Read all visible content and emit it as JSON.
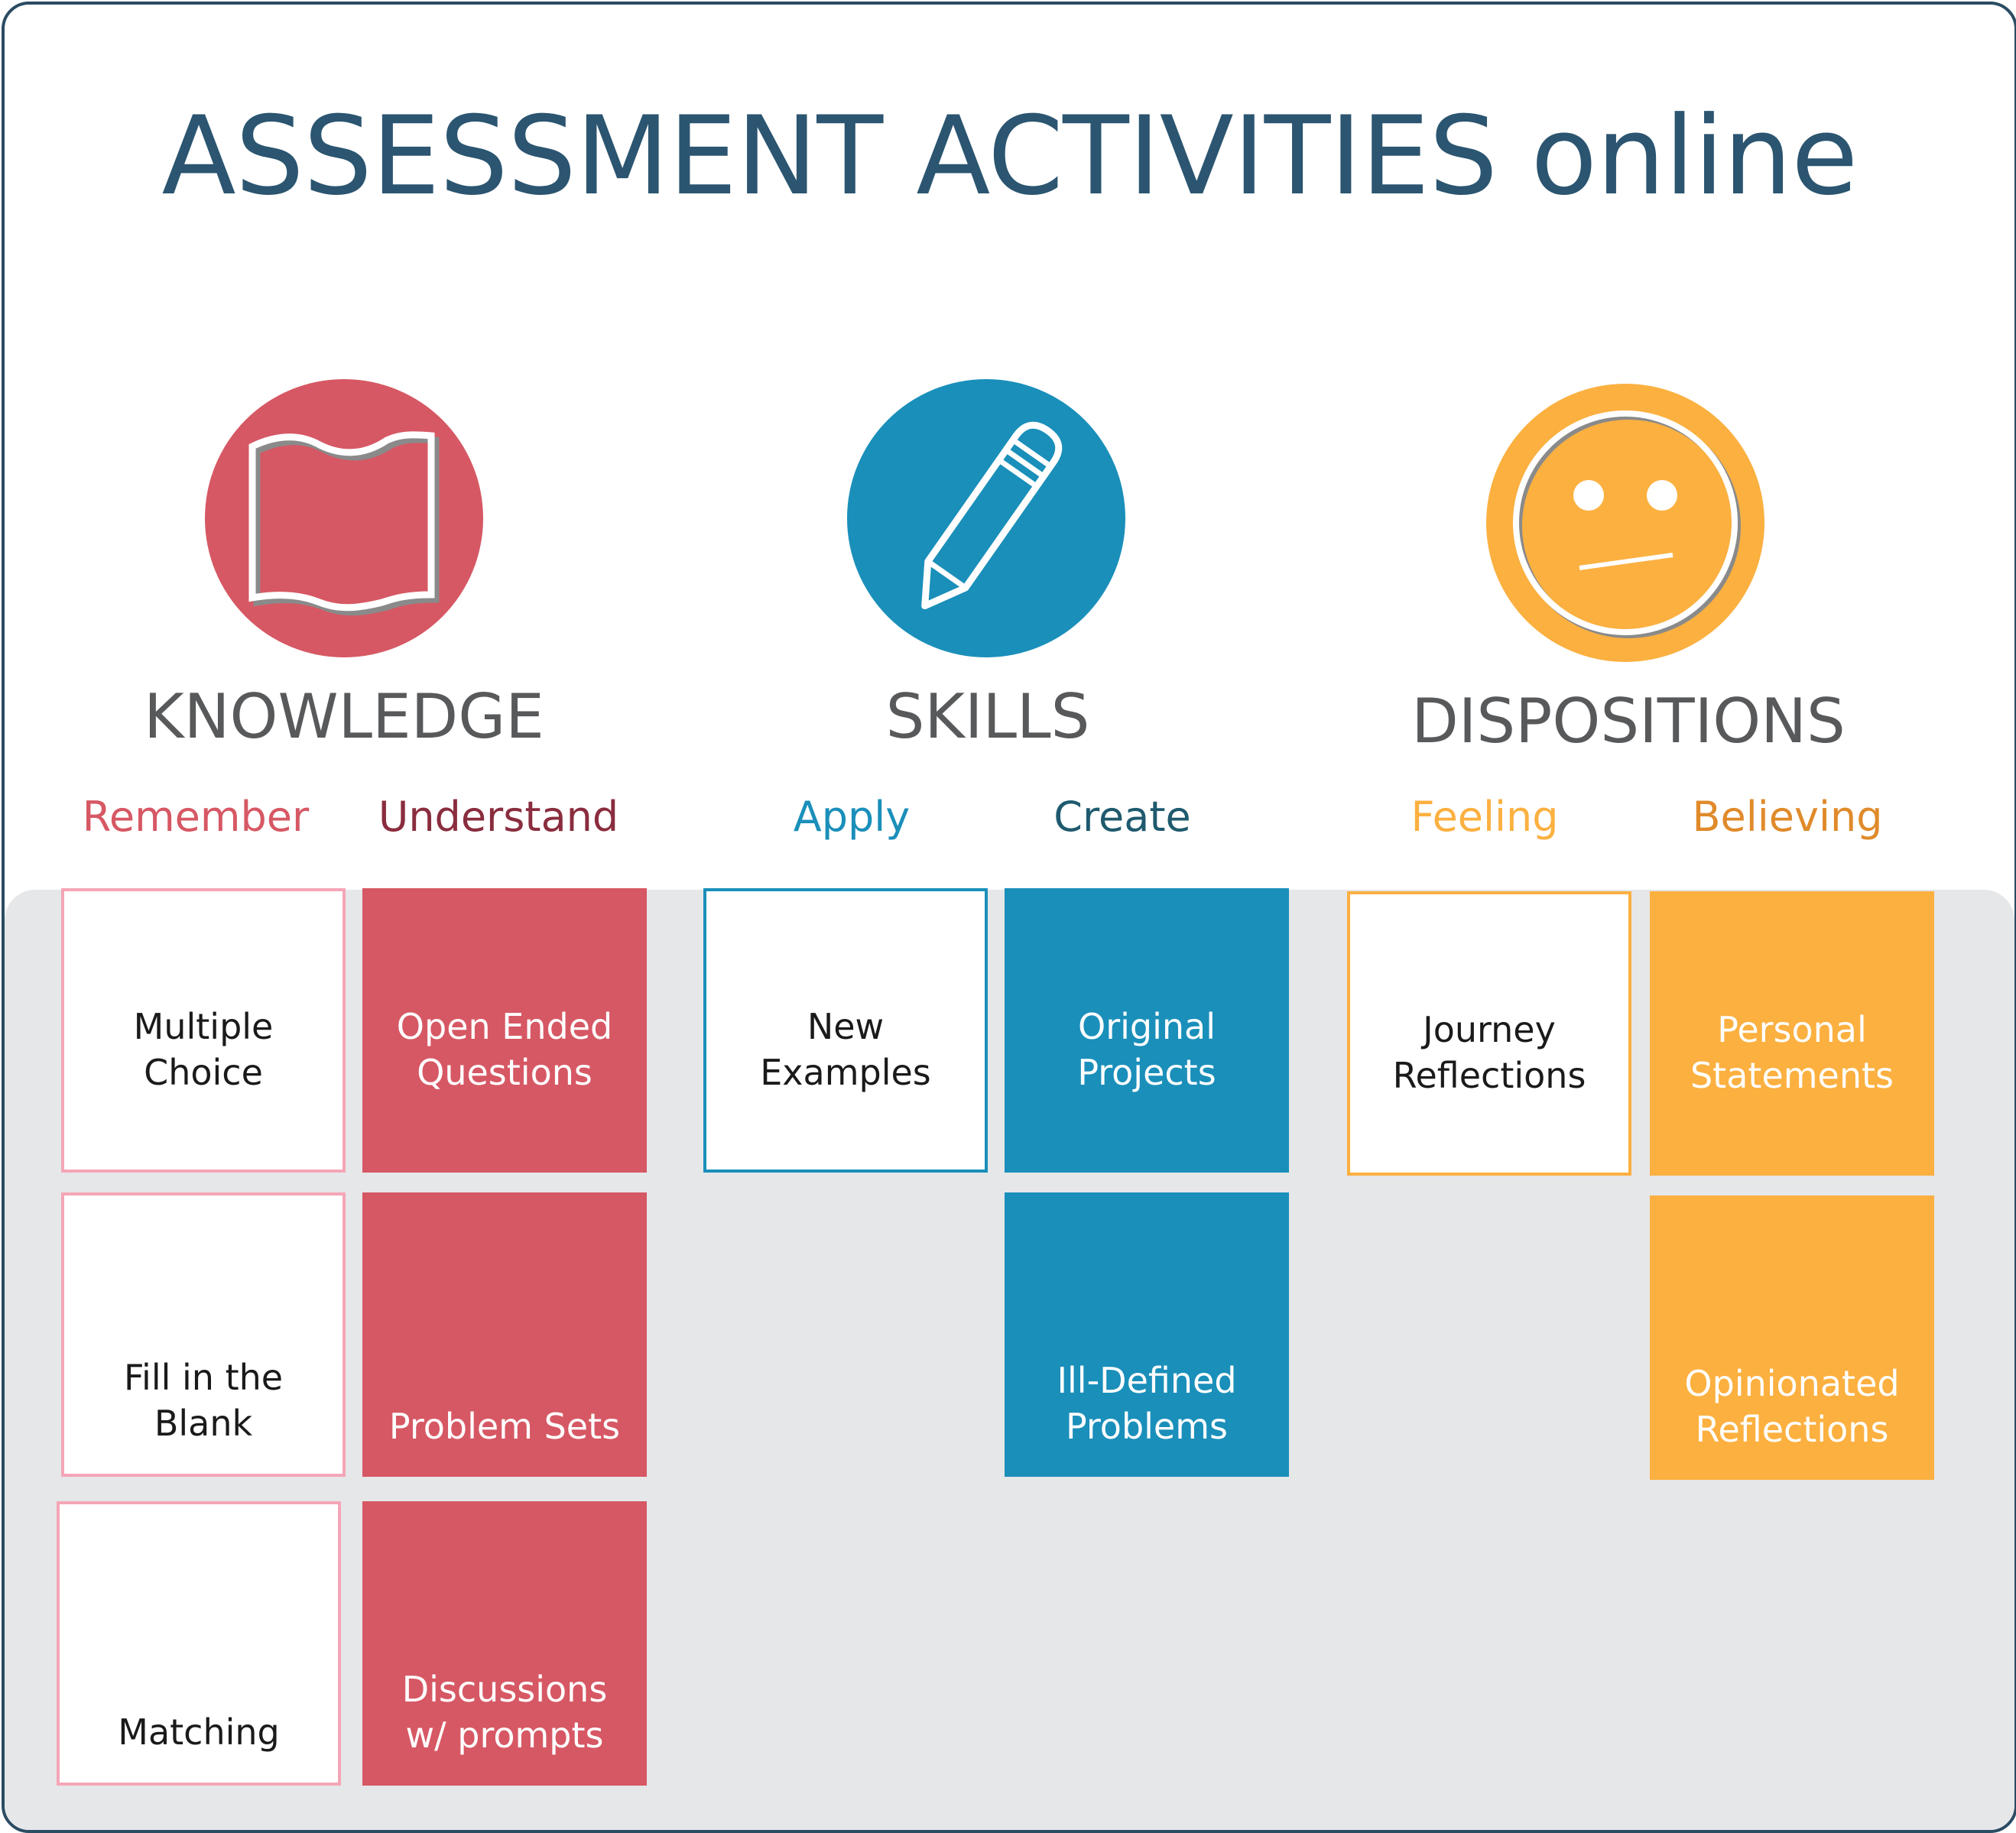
{
  "title": "ASSESSMENT ACTIVITIES online",
  "colors": {
    "border": "#2b4c63",
    "title": "#2b5570",
    "knowledge": "#d65864",
    "skills": "#1a8fba",
    "dispositions": "#fbb040",
    "panel": "#e6e7e9",
    "category_text": "#58595b"
  },
  "categories": [
    {
      "label": "KNOWLEDGE",
      "icon": "open-book-icon",
      "subs": [
        {
          "label": "Remember",
          "color": "#d65864"
        },
        {
          "label": "Understand",
          "color": "#8a2d3e"
        }
      ]
    },
    {
      "label": "SKILLS",
      "icon": "pencil-icon",
      "subs": [
        {
          "label": "Apply",
          "color": "#1a8fba"
        },
        {
          "label": "Create",
          "color": "#1f5a6e"
        }
      ]
    },
    {
      "label": "DISPOSITIONS",
      "icon": "neutral-face-icon",
      "subs": [
        {
          "label": "Feeling",
          "color": "#fbb040"
        },
        {
          "label": "Believing",
          "color": "#e08a2a"
        }
      ]
    }
  ],
  "cards": {
    "remember": [
      "Multiple\nChoice",
      "Fill in the Blank",
      "Matching"
    ],
    "understand": [
      "Open Ended\nQuestions",
      "Problem Sets",
      "Discussions\nw/ prompts"
    ],
    "apply": [
      "New\nExamples"
    ],
    "create": [
      "Original Projects",
      "Ill-Defined\nProblems"
    ],
    "feeling": [
      "Journey\nReflections"
    ],
    "believing": [
      "Personal\nStatements",
      "Opinionated\nReflections"
    ]
  }
}
